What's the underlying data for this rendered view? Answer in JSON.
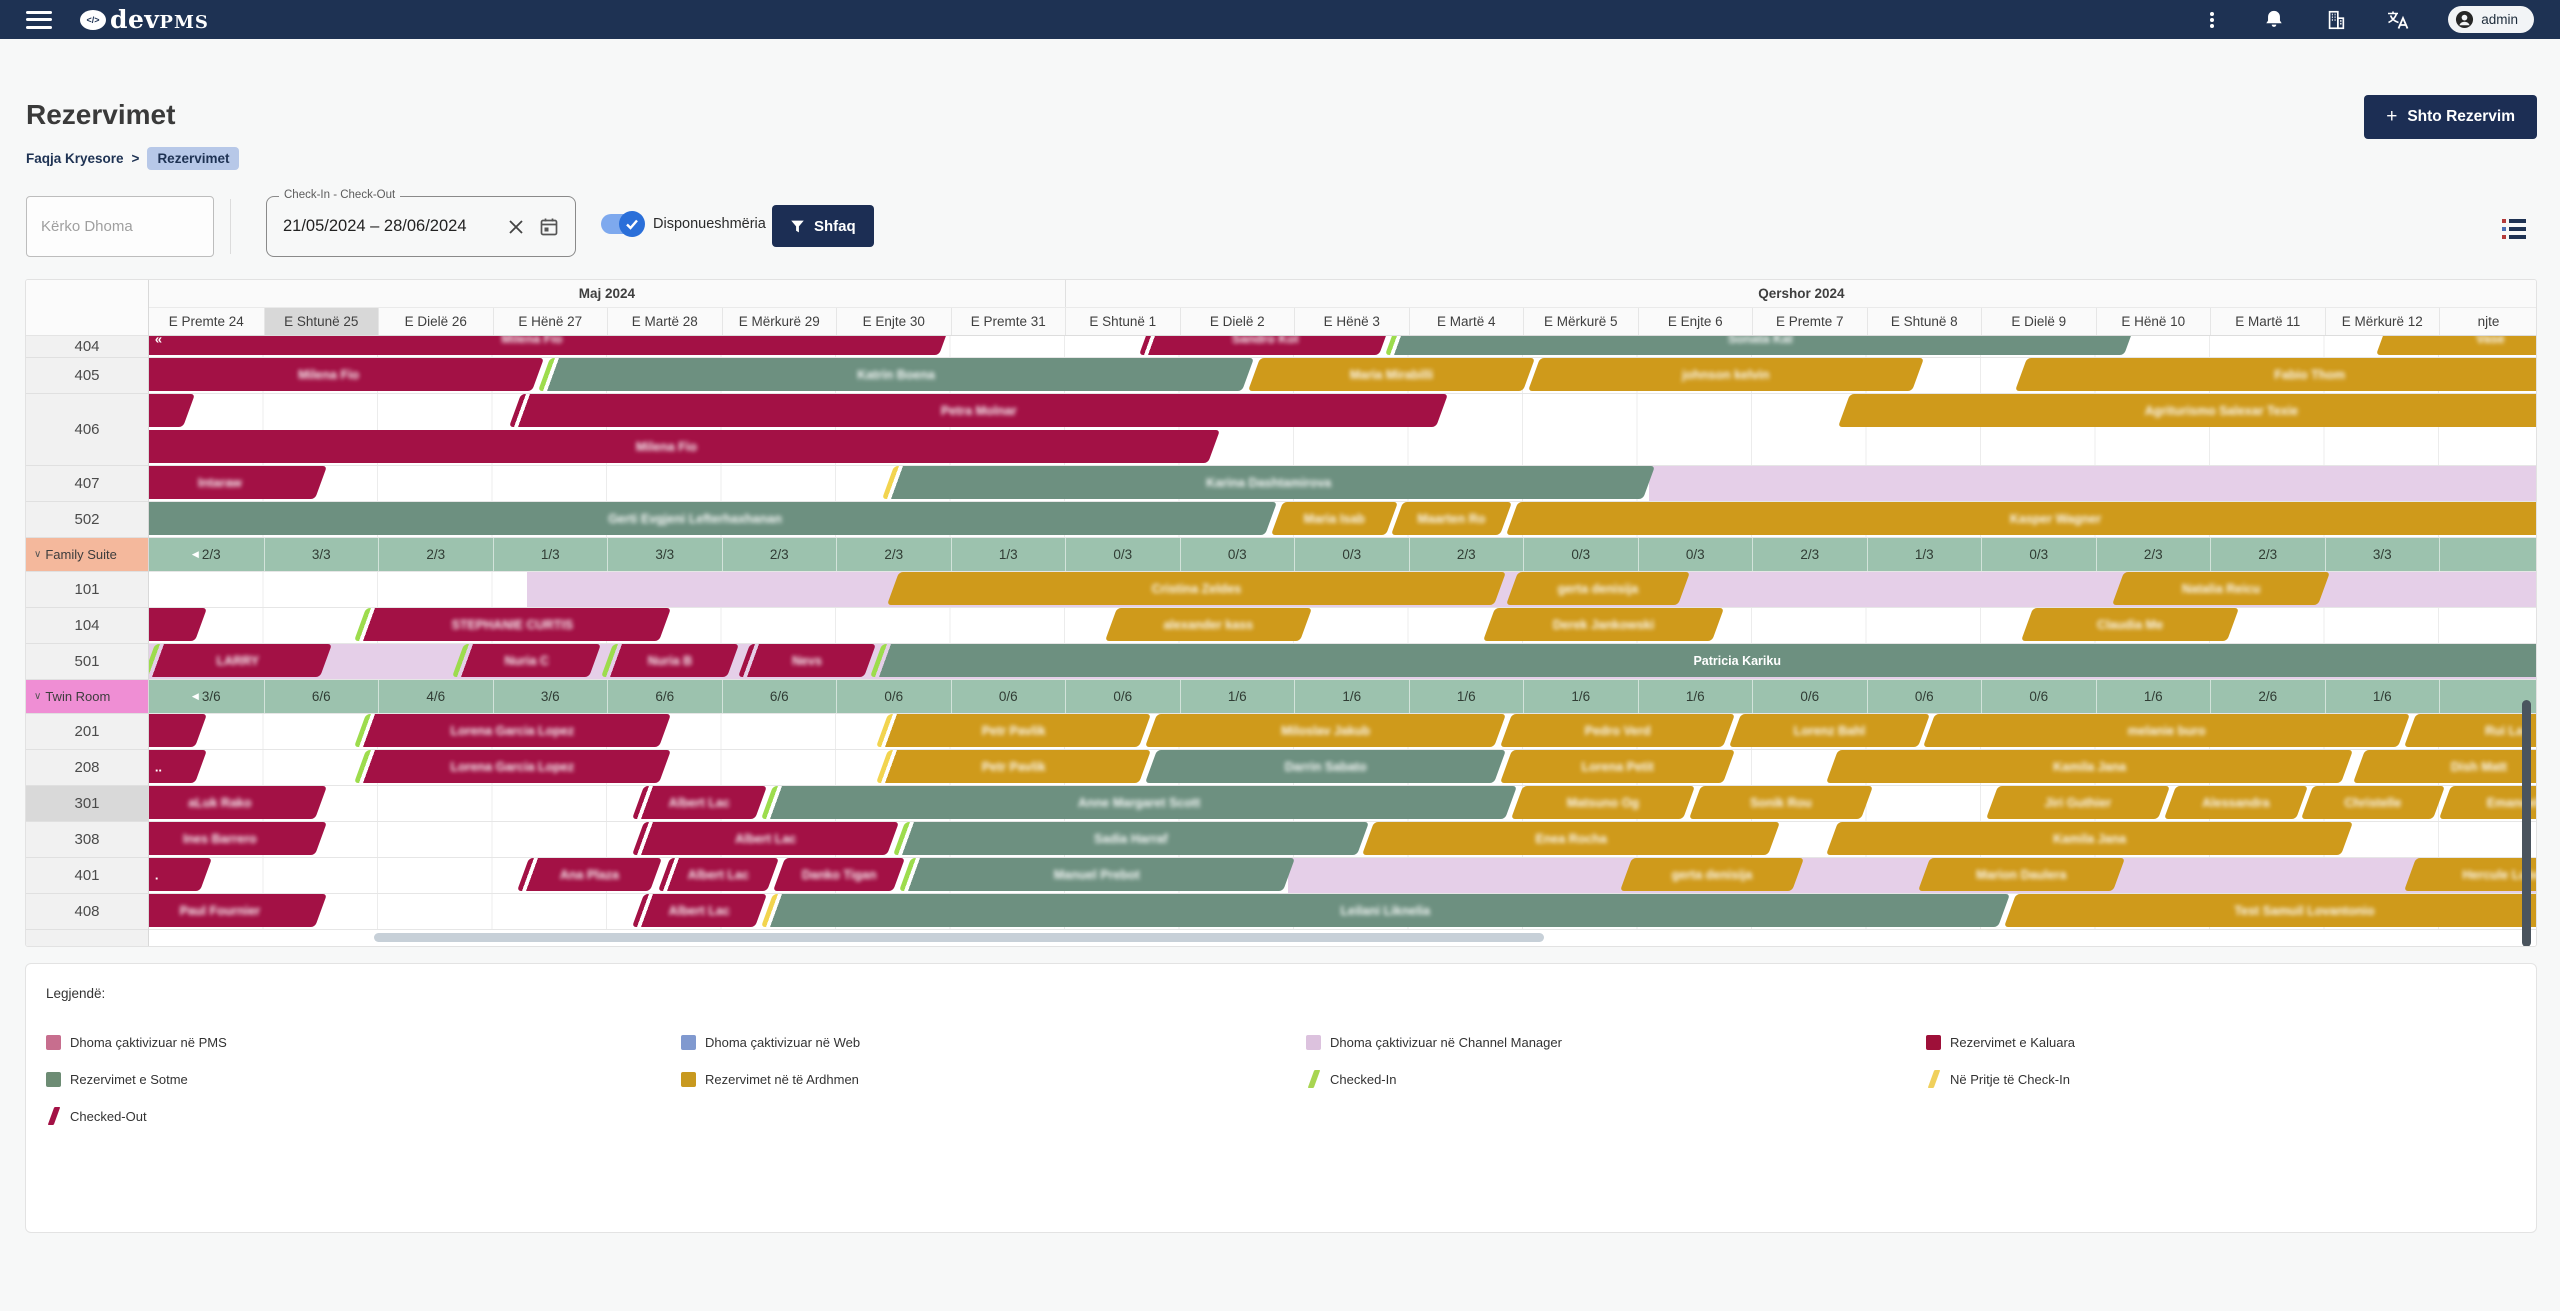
{
  "topbar": {
    "logo_dev": "dev",
    "logo_pms": "PMS",
    "user": "admin"
  },
  "page": {
    "title": "Rezervimet",
    "breadcrumb_home": "Faqja Kryesore",
    "breadcrumb_sep": ">",
    "breadcrumb_current": "Rezervimet",
    "add_button": "Shto Rezervim"
  },
  "filters": {
    "search_placeholder": "Kërko Dhoma",
    "date_label": "Check-In - Check-Out",
    "date_value": "21/05/2024 – 28/06/2024",
    "toggle_label": "Disponueshmëria",
    "show_button": "Shfaq"
  },
  "gantt": {
    "months": [
      {
        "label": "Maj 2024",
        "cols": 8
      },
      {
        "label": "Qershor 2024",
        "cols": 12.86
      }
    ],
    "days": [
      "E Premte 24",
      "E Shtunë 25",
      "E Dielë 26",
      "E Hënë 27",
      "E Martë 28",
      "E Mërkurë 29",
      "E Enjte 30",
      "E Premte 31",
      "E Shtunë 1",
      "E Dielë 2",
      "E Hënë 3",
      "E Martë 4",
      "E Mërkurë 5",
      "E Enjte 6",
      "E Premte 7",
      "E Shtunë 8",
      "E Dielë 9",
      "E Hënë 10",
      "E Martë 11",
      "E Mërkurë 12"
    ],
    "partial_day": "njte",
    "today_index": 1,
    "colors": {
      "bar": {
        "past": "#a31145",
        "today": "#6d9080",
        "future": "#cf9a1b"
      },
      "stripe": {
        "in": "#9ddc4d",
        "pend": "#f2d44f"
      },
      "lavender": "#e5cfe8",
      "avail_bg": "#9cc2ae",
      "fs": "#f4b89c",
      "tr": "#ef8ed4"
    },
    "rows": [
      {
        "type": "room",
        "label": "404",
        "h": 22,
        "bars": [
          {
            "t": "past",
            "s": 0,
            "e": 6.95,
            "cl": true,
            "pre": "«",
            "l": "Milena Fio"
          },
          {
            "t": "past",
            "s": 8.7,
            "e": 10.8,
            "st": "out",
            "l": "Sandro Kol"
          },
          {
            "t": "today",
            "s": 10.85,
            "e": 17.3,
            "st": "in",
            "l": "Sonata Kal"
          },
          {
            "t": "future",
            "s": 19.5,
            "e": 21,
            "cr": true,
            "l": "Vase"
          }
        ]
      },
      {
        "type": "room",
        "label": "405",
        "bars": [
          {
            "t": "past",
            "s": 0,
            "e": 3.4,
            "cl": true,
            "l": "Milena Fio"
          },
          {
            "t": "today",
            "s": 3.45,
            "e": 9.6,
            "st": "in",
            "l": "Katrin Boena"
          },
          {
            "t": "future",
            "s": 9.65,
            "e": 12.05,
            "l": "Maria Mirabilli"
          },
          {
            "t": "future",
            "s": 12.1,
            "e": 15.45,
            "l": "johnson kelvin"
          },
          {
            "t": "future",
            "s": 16.35,
            "e": 21,
            "cr": true,
            "l": "Fabio Thom"
          }
        ]
      },
      {
        "type": "room",
        "label": "406",
        "h": 72,
        "lanes": [
          [
            {
              "t": "past",
              "s": 0,
              "e": 0.35,
              "cl": true
            },
            {
              "t": "past",
              "s": 3.2,
              "e": 11.3,
              "st": "out",
              "l": "Petra Molnar"
            },
            {
              "t": "future",
              "s": 14.8,
              "e": 21,
              "cr": true,
              "l": "Agriturismo Salexar Texie"
            }
          ],
          [
            {
              "t": "past",
              "s": 0,
              "e": 9.3,
              "cl": true,
              "l": "Milena Fio"
            }
          ]
        ]
      },
      {
        "type": "room",
        "label": "407",
        "bg": [
          {
            "s": 13.1,
            "e": 21
          }
        ],
        "bars": [
          {
            "t": "past",
            "s": 0,
            "e": 1.5,
            "cl": true,
            "st": "pend",
            "l": "Intaraw"
          },
          {
            "t": "today",
            "s": 6.45,
            "e": 13.1,
            "st": "pend",
            "l": "Karina Dashtamirova"
          }
        ]
      },
      {
        "type": "room",
        "label": "502",
        "bars": [
          {
            "t": "today",
            "s": 0,
            "e": 9.8,
            "cl": true,
            "l": "Gerti Evgjeni Lefterhaxhanan"
          },
          {
            "t": "future",
            "s": 9.85,
            "e": 10.85,
            "l": "Maria Isab"
          },
          {
            "t": "future",
            "s": 10.9,
            "e": 11.85,
            "l": "Maarten Ro"
          },
          {
            "t": "future",
            "s": 11.9,
            "e": 21,
            "cr": true,
            "l": "Kasper Wagner"
          }
        ]
      },
      {
        "type": "group",
        "label": "Family Suite",
        "color": "fs",
        "avail": [
          "2/3",
          "3/3",
          "2/3",
          "1/3",
          "3/3",
          "2/3",
          "2/3",
          "1/3",
          "0/3",
          "0/3",
          "0/3",
          "2/3",
          "0/3",
          "0/3",
          "2/3",
          "1/3",
          "0/3",
          "2/3",
          "2/3",
          "3/3"
        ]
      },
      {
        "type": "room",
        "label": "101",
        "bg": [
          {
            "s": 3.3,
            "e": 21
          }
        ],
        "bars": [
          {
            "t": "future",
            "s": 6.5,
            "e": 11.8,
            "l": "Cristina Zeldes"
          },
          {
            "t": "future",
            "s": 11.9,
            "e": 13.4,
            "l": "gerta denisija"
          },
          {
            "t": "future",
            "s": 17.2,
            "e": 19.0,
            "l": "Natalia Reicu"
          }
        ]
      },
      {
        "type": "room",
        "label": "104",
        "bars": [
          {
            "t": "past",
            "s": 0,
            "e": 0.45,
            "cl": true
          },
          {
            "t": "past",
            "s": 1.84,
            "e": 4.5,
            "st": "in",
            "l": "STEPHANIE CURTIS"
          },
          {
            "t": "future",
            "s": 8.4,
            "e": 10.1,
            "l": "alexander kass"
          },
          {
            "t": "future",
            "s": 11.7,
            "e": 13.7,
            "l": "Derek Jankowski"
          },
          {
            "t": "future",
            "s": 16.4,
            "e": 18.2,
            "l": "Claudia Me"
          }
        ]
      },
      {
        "type": "room",
        "label": "501",
        "bg": [
          {
            "s": 0,
            "e": 21
          }
        ],
        "bars": [
          {
            "t": "past",
            "s": 0,
            "e": 1.55,
            "st": "in",
            "l": "LARRY"
          },
          {
            "t": "past",
            "s": 2.7,
            "e": 3.9,
            "st": "in",
            "l": "Nuria C"
          },
          {
            "t": "past",
            "s": 4.0,
            "e": 5.1,
            "st": "in",
            "l": "Nuria B"
          },
          {
            "t": "past",
            "s": 5.2,
            "e": 6.3,
            "st": "out",
            "l": "Nevs"
          },
          {
            "t": "today",
            "s": 6.35,
            "e": 21,
            "cr": true,
            "st": "in",
            "l": "Patricia Kariku",
            "nb": true
          }
        ]
      },
      {
        "type": "group",
        "label": "Twin Room",
        "color": "tr",
        "avail": [
          "3/6",
          "6/6",
          "4/6",
          "3/6",
          "6/6",
          "6/6",
          "0/6",
          "0/6",
          "0/6",
          "1/6",
          "1/6",
          "1/6",
          "1/6",
          "1/6",
          "0/6",
          "0/6",
          "0/6",
          "1/6",
          "2/6",
          "1/6"
        ]
      },
      {
        "type": "room",
        "label": "201",
        "bars": [
          {
            "t": "past",
            "s": 0,
            "e": 0.45,
            "cl": true
          },
          {
            "t": "past",
            "s": 1.84,
            "e": 4.5,
            "st": "in",
            "l": "Lorena Garcia Lopez"
          },
          {
            "t": "future",
            "s": 6.4,
            "e": 8.7,
            "st": "pend",
            "l": "Petr Pavlik"
          },
          {
            "t": "future",
            "s": 8.75,
            "e": 11.8,
            "l": "Miloslav Jakub"
          },
          {
            "t": "future",
            "s": 11.85,
            "e": 13.8,
            "l": "Pedro Verd"
          },
          {
            "t": "future",
            "s": 13.85,
            "e": 15.5,
            "l": "Lorenz Bahl"
          },
          {
            "t": "future",
            "s": 15.55,
            "e": 19.7,
            "l": "melanie buro"
          },
          {
            "t": "future",
            "s": 19.75,
            "e": 21,
            "cr": true,
            "l": "Rui La"
          }
        ]
      },
      {
        "type": "room",
        "label": "208",
        "bars": [
          {
            "t": "past",
            "s": 0,
            "e": 0.45,
            "cl": true,
            "pre": ".."
          },
          {
            "t": "past",
            "s": 1.84,
            "e": 4.5,
            "st": "in",
            "l": "Lorena Garcia Lopez"
          },
          {
            "t": "future",
            "s": 6.4,
            "e": 8.7,
            "st": "pend",
            "l": "Petr Pavlik"
          },
          {
            "t": "today",
            "s": 8.75,
            "e": 11.8,
            "l": "Darrin Sabato"
          },
          {
            "t": "future",
            "s": 11.85,
            "e": 13.8,
            "l": "Lorena Petit"
          },
          {
            "t": "future",
            "s": 14.7,
            "e": 19.2,
            "l": "Kamila Jana"
          },
          {
            "t": "future",
            "s": 19.3,
            "e": 21,
            "cr": true,
            "l": "Dish Matt"
          }
        ]
      },
      {
        "type": "room",
        "label": "301",
        "hl": true,
        "bars": [
          {
            "t": "past",
            "s": 0,
            "e": 1.5,
            "cl": true,
            "l": "aLuk Rako"
          },
          {
            "t": "past",
            "s": 4.27,
            "e": 5.34,
            "st": "out",
            "l": "Albert Lac"
          },
          {
            "t": "today",
            "s": 5.4,
            "e": 11.9,
            "st": "in",
            "l": "Anne Margaret Scott"
          },
          {
            "t": "future",
            "s": 11.95,
            "e": 13.45,
            "l": "Matsuno Og"
          },
          {
            "t": "future",
            "s": 13.5,
            "e": 15.0,
            "l": "Sonik Rou"
          },
          {
            "t": "future",
            "s": 16.1,
            "e": 17.6,
            "l": "Jiri Guthier"
          },
          {
            "t": "future",
            "s": 17.65,
            "e": 18.8,
            "l": "Alessandra"
          },
          {
            "t": "future",
            "s": 18.85,
            "e": 20.0,
            "l": "Christelle"
          },
          {
            "t": "future",
            "s": 20.05,
            "e": 21,
            "cr": true,
            "l": "Emanuele F"
          }
        ]
      },
      {
        "type": "room",
        "label": "308",
        "bars": [
          {
            "t": "past",
            "s": 0,
            "e": 1.5,
            "cl": true,
            "l": "Ines Barrero"
          },
          {
            "t": "past",
            "s": 4.27,
            "e": 6.5,
            "st": "out",
            "l": "Albert Lac"
          },
          {
            "t": "today",
            "s": 6.55,
            "e": 10.6,
            "st": "in",
            "l": "Sadia Harraf"
          },
          {
            "t": "future",
            "s": 10.65,
            "e": 14.2,
            "l": "Enea Rocha"
          },
          {
            "t": "future",
            "s": 14.7,
            "e": 19.2,
            "l": "Kamila Jana"
          }
        ]
      },
      {
        "type": "room",
        "label": "401",
        "bg": [
          {
            "s": 9.95,
            "e": 21
          }
        ],
        "bars": [
          {
            "t": "past",
            "s": 0,
            "e": 0.5,
            "cl": true,
            "pre": "."
          },
          {
            "t": "past",
            "s": 3.27,
            "e": 4.43,
            "st": "out",
            "l": "Ana Plaza"
          },
          {
            "t": "past",
            "s": 4.5,
            "e": 5.45,
            "st": "out",
            "l": "Albert Lac"
          },
          {
            "t": "past",
            "s": 5.5,
            "e": 6.55,
            "l": "Danko Tigan"
          },
          {
            "t": "today",
            "s": 6.6,
            "e": 9.95,
            "st": "in",
            "l": "Manuel Prebot"
          },
          {
            "t": "future",
            "s": 12.9,
            "e": 14.4,
            "l": "gerta denisija"
          },
          {
            "t": "future",
            "s": 15.5,
            "e": 17.2,
            "l": "Marion Daulera"
          },
          {
            "t": "future",
            "s": 19.75,
            "e": 21,
            "cr": true,
            "l": "Hercule Lubdi"
          }
        ]
      },
      {
        "type": "room",
        "label": "408",
        "bars": [
          {
            "t": "past",
            "s": 0,
            "e": 1.5,
            "cl": true,
            "l": "Paul Fournier"
          },
          {
            "t": "past",
            "s": 4.27,
            "e": 5.34,
            "st": "out",
            "l": "Albert Lac"
          },
          {
            "t": "today",
            "s": 5.4,
            "e": 16.2,
            "st": "pend",
            "l": "Leilani Liknelia"
          },
          {
            "t": "future",
            "s": 16.25,
            "e": 21,
            "cr": true,
            "l": "Test Samuil Lovantonio"
          }
        ]
      }
    ]
  },
  "legend": {
    "title": "Legjendë:",
    "columns": [
      [
        {
          "label": "Dhoma çaktivizuar në PMS",
          "type": "square",
          "color": "#c76e8e"
        },
        {
          "label": "Rezervimet e Sotme",
          "type": "square",
          "color": "#6d8c74"
        },
        {
          "label": "Checked-Out",
          "type": "diag",
          "color": "#a31145"
        }
      ],
      [
        {
          "label": "Dhoma çaktivizuar në Web",
          "type": "square",
          "color": "#8099cf"
        },
        {
          "label": "Rezervimet në të Ardhmen",
          "type": "square",
          "color": "#c8991f"
        }
      ],
      [
        {
          "label": "Dhoma çaktivizuar në Channel Manager",
          "type": "square",
          "color": "#dcc2de"
        },
        {
          "label": "Checked-In",
          "type": "diag",
          "color": "#a8d551"
        }
      ],
      [
        {
          "label": "Rezervimet e Kaluara",
          "type": "square",
          "color": "#9e1039"
        },
        {
          "label": "Në Pritje të Check-In",
          "type": "diag",
          "color": "#f0d05c"
        }
      ]
    ]
  }
}
